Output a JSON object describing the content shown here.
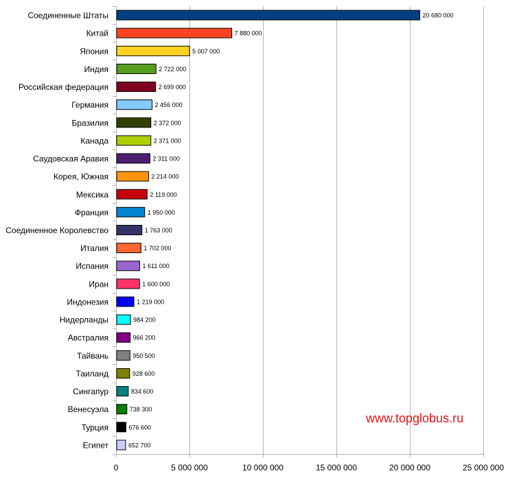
{
  "chart_data": {
    "type": "bar",
    "orientation": "horizontal",
    "title": "",
    "xlabel": "",
    "ylabel": "",
    "xlim": [
      0,
      25000000
    ],
    "x_ticks": [
      {
        "value": 0,
        "label": "0"
      },
      {
        "value": 5000000,
        "label": "5 000 000"
      },
      {
        "value": 10000000,
        "label": "10 000 000"
      },
      {
        "value": 15000000,
        "label": "15 000 000"
      },
      {
        "value": 20000000,
        "label": "20 000 000"
      },
      {
        "value": 25000000,
        "label": "25 000 000"
      }
    ],
    "grid": "vertical",
    "legend": "none",
    "bars": [
      {
        "category": "Соединенные Штаты",
        "value": 20680000,
        "label": "20 680 000",
        "color": "#003f7f"
      },
      {
        "category": "Китай",
        "value": 7880000,
        "label": "7 880 000",
        "color": "#ff4422"
      },
      {
        "category": "Япония",
        "value": 5007000,
        "label": "5 007 000",
        "color": "#ffd320"
      },
      {
        "category": "Индия",
        "value": 2722000,
        "label": "2 722 000",
        "color": "#579d1c"
      },
      {
        "category": "Российская федерация",
        "value": 2699000,
        "label": "2 699 000",
        "color": "#7e0021"
      },
      {
        "category": "Германия",
        "value": 2456000,
        "label": "2 456 000",
        "color": "#83caff"
      },
      {
        "category": "Бразилия",
        "value": 2372000,
        "label": "2 372 000",
        "color": "#314004"
      },
      {
        "category": "Канада",
        "value": 2371000,
        "label": "2 371 000",
        "color": "#aecf00"
      },
      {
        "category": "Саудовская Аравия",
        "value": 2311000,
        "label": "2 311 000",
        "color": "#4b1f6f"
      },
      {
        "category": "Корея, Южная",
        "value": 2214000,
        "label": "2 214 000",
        "color": "#ff950e"
      },
      {
        "category": "Мексика",
        "value": 2119000,
        "label": "2 119 000",
        "color": "#c5000b"
      },
      {
        "category": "Франция",
        "value": 1950000,
        "label": "1 950 000",
        "color": "#0084d1"
      },
      {
        "category": "Соединенное Королевство",
        "value": 1763000,
        "label": "1 763 000",
        "color": "#333366"
      },
      {
        "category": "Италия",
        "value": 1702000,
        "label": "1 702 000",
        "color": "#ff6633"
      },
      {
        "category": "Испания",
        "value": 1611000,
        "label": "1 611 000",
        "color": "#9966cc"
      },
      {
        "category": "Иран",
        "value": 1600000,
        "label": "1 600 000",
        "color": "#ff3366"
      },
      {
        "category": "Индонезия",
        "value": 1219000,
        "label": "1 219 000",
        "color": "#0000ff"
      },
      {
        "category": "Нидерланды",
        "value": 984200,
        "label": "984 200",
        "color": "#00ffff"
      },
      {
        "category": "Австралия",
        "value": 966200,
        "label": "966 200",
        "color": "#800080"
      },
      {
        "category": "Тайвань",
        "value": 950500,
        "label": "950 500",
        "color": "#808080"
      },
      {
        "category": "Таиланд",
        "value": 928600,
        "label": "928 600",
        "color": "#808000"
      },
      {
        "category": "Сингапур",
        "value": 834600,
        "label": "834 600",
        "color": "#008080"
      },
      {
        "category": "Венесуэла",
        "value": 738300,
        "label": "738 300",
        "color": "#008000"
      },
      {
        "category": "Турция",
        "value": 676600,
        "label": "676 600",
        "color": "#000000"
      },
      {
        "category": "Египет",
        "value": 652700,
        "label": "652 700",
        "color": "#ccccff"
      }
    ]
  },
  "watermark": "www.topglobus.ru"
}
